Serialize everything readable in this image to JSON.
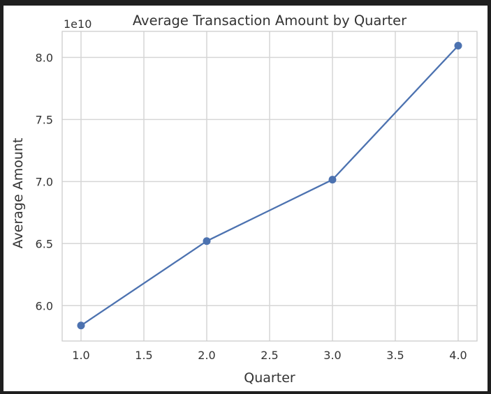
{
  "chart_data": {
    "type": "line",
    "title": "Average Transaction Amount by Quarter",
    "xlabel": "Quarter",
    "ylabel": "Average Amount",
    "y_offset_label": "1e10",
    "x": [
      1.0,
      2.0,
      3.0,
      4.0
    ],
    "series": [
      {
        "values": [
          58400000000,
          65200000000,
          70150000000,
          80950000000
        ]
      }
    ],
    "xlim": [
      0.85,
      4.15
    ],
    "ylim": [
      57150000000,
      82100000000
    ],
    "x_ticks": [
      "1.0",
      "1.5",
      "2.0",
      "2.5",
      "3.0",
      "3.5",
      "4.0"
    ],
    "x_tick_values": [
      1.0,
      1.5,
      2.0,
      2.5,
      3.0,
      3.5,
      4.0
    ],
    "y_ticks": [
      "6.0",
      "6.5",
      "7.0",
      "7.5",
      "8.0"
    ],
    "y_tick_values": [
      60000000000,
      65000000000,
      70000000000,
      75000000000,
      80000000000
    ],
    "grid": true,
    "line_color": "#4c72b0"
  }
}
